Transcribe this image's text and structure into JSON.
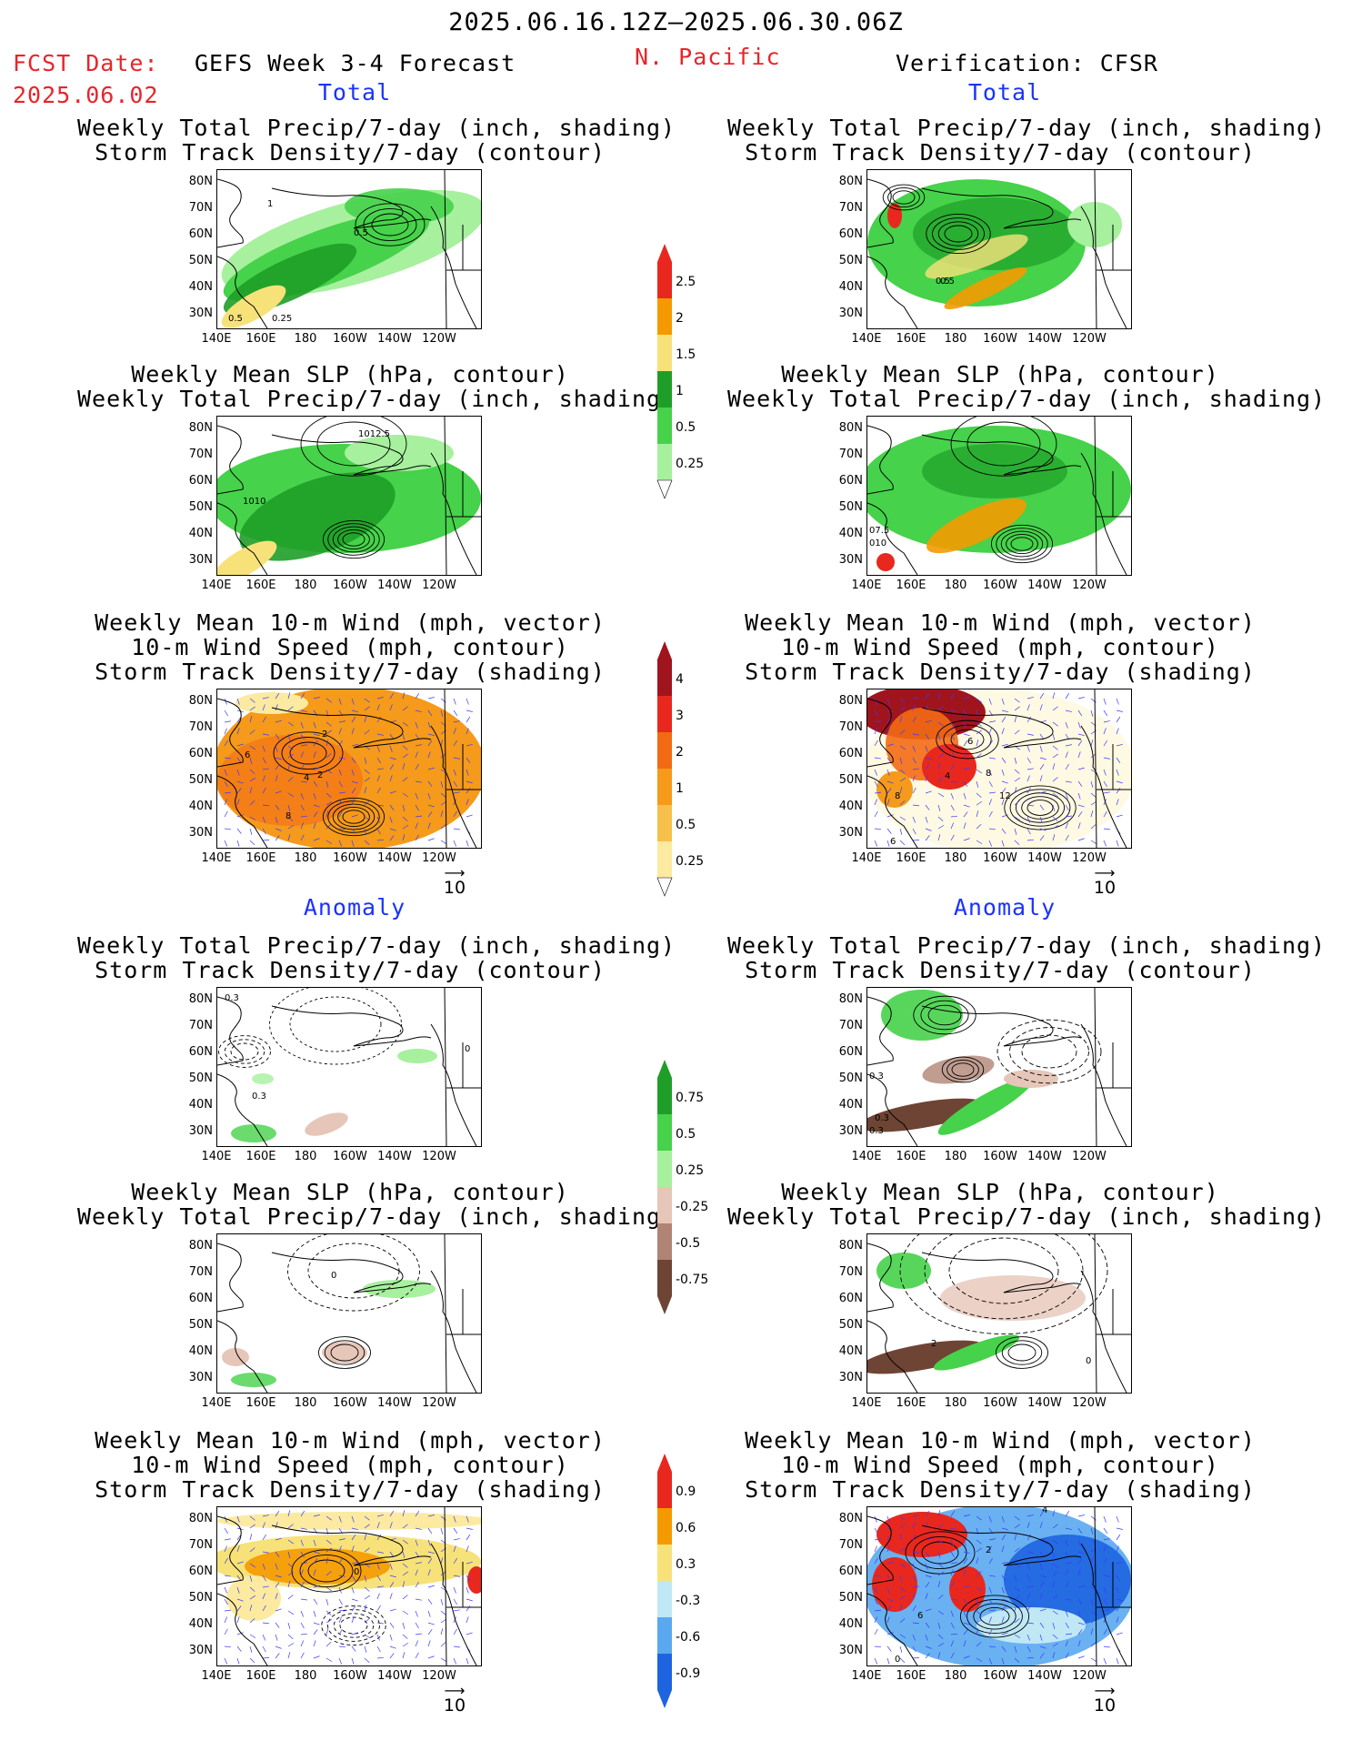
{
  "header": {
    "date_range": "2025.06.16.12Z–2025.06.30.06Z",
    "fcst_label": "FCST Date:",
    "fcst_date": "2025.06.02",
    "model": "GEFS Week 3-4 Forecast",
    "region": "N. Pacific",
    "verification": "Verification: CFSR"
  },
  "sections": {
    "total": "Total",
    "anomaly": "Anomaly"
  },
  "titles": {
    "precip_storm": [
      "Weekly Total Precip/7-day (inch, shading)",
      "Storm Track Density/7-day (contour)"
    ],
    "slp_precip": [
      "Weekly Mean SLP (hPa, contour)",
      "Weekly Total Precip/7-day (inch, shading)"
    ],
    "wind_storm": [
      "Weekly Mean 10-m Wind (mph, vector)",
      "10-m Wind Speed (mph, contour)",
      "Storm Track Density/7-day (shading)"
    ]
  },
  "axes": {
    "lat": [
      "80N",
      "70N",
      "60N",
      "50N",
      "40N",
      "30N"
    ],
    "lon": [
      "140E",
      "160E",
      "180",
      "160W",
      "140W",
      "120W"
    ]
  },
  "vector_ref": "10",
  "contour_labels": {
    "p1": [
      "1",
      "0.5",
      "0.5",
      "0.25"
    ],
    "p2": [
      "0.5",
      "0.5"
    ],
    "p3": [
      "1012.5",
      "1010"
    ],
    "p4": [
      "07.5",
      "010"
    ],
    "p5": [
      "2",
      "6",
      "4",
      "2",
      "8"
    ],
    "p6": [
      "6",
      "4",
      "8",
      "8",
      "12",
      "6"
    ],
    "p7": [
      "0.3",
      "0.3",
      "0"
    ],
    "p8": [
      "0.3",
      "0.3",
      "0.3"
    ],
    "p9": [
      "0"
    ],
    "p10": [
      "2",
      "0"
    ],
    "p11": [
      "0"
    ],
    "p12": [
      "4",
      "2",
      "6",
      "0"
    ]
  },
  "colorbars": {
    "precip_total": {
      "labels": [
        "2.5",
        "2",
        "1.5",
        "1",
        "0.5",
        "0.25"
      ],
      "colors": [
        "#e8281e",
        "#f49a00",
        "#f7e27a",
        "#1e9e28",
        "#46d24a",
        "#a6f09e"
      ]
    },
    "storm_total": {
      "labels": [
        "4",
        "3",
        "2",
        "1",
        "0.5",
        "0.25"
      ],
      "colors": [
        "#a0141e",
        "#e8281e",
        "#f36a14",
        "#f59a1a",
        "#f7c04a",
        "#fbeaa0"
      ]
    },
    "precip_anom": {
      "labels": [
        "0.75",
        "0.5",
        "0.25",
        "-0.25",
        "-0.5",
        "-0.75"
      ],
      "colors": [
        "#1e9e28",
        "#46d24a",
        "#a6f09e",
        "#e6c6b8",
        "#b08474",
        "#6e4434"
      ]
    },
    "storm_anom": {
      "labels": [
        "0.9",
        "0.6",
        "0.3",
        "-0.3",
        "-0.6",
        "-0.9"
      ],
      "colors": [
        "#e8281e",
        "#f49a00",
        "#f7e27a",
        "#bfe8f4",
        "#5aa8f0",
        "#1e64e0"
      ]
    }
  }
}
